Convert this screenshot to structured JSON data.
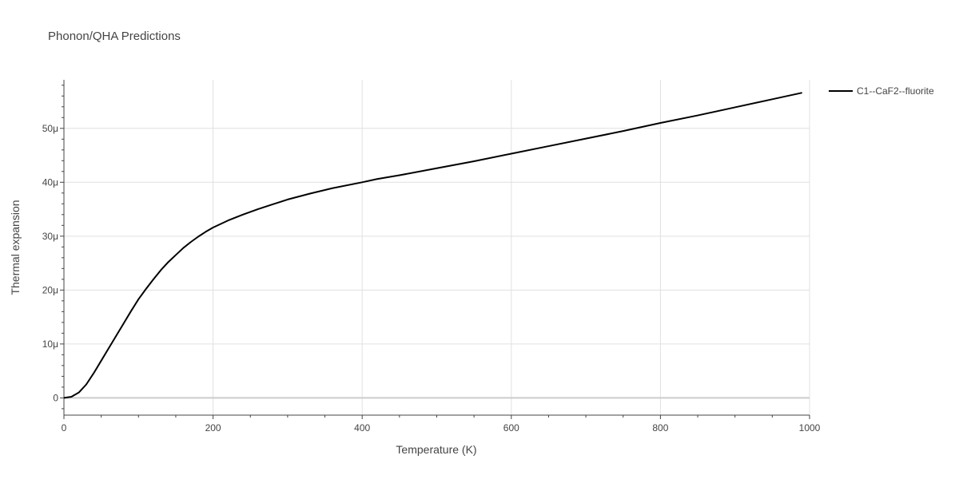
{
  "chart_data": {
    "type": "line",
    "title": "Phonon/QHA Predictions",
    "xlabel": "Temperature (K)",
    "ylabel": "Thermal expansion",
    "xlim": [
      0,
      1000
    ],
    "ylim": [
      -3.2e-06,
      5.9e-05
    ],
    "grid": true,
    "legend_position": "top-right",
    "x_ticks": [
      {
        "value": 0,
        "label": "0"
      },
      {
        "value": 200,
        "label": "200"
      },
      {
        "value": 400,
        "label": "400"
      },
      {
        "value": 600,
        "label": "600"
      },
      {
        "value": 800,
        "label": "800"
      },
      {
        "value": 1000,
        "label": "1000"
      }
    ],
    "y_ticks": [
      {
        "value": 0,
        "label": "0"
      },
      {
        "value": 1e-05,
        "label": "10μ"
      },
      {
        "value": 2e-05,
        "label": "20μ"
      },
      {
        "value": 3e-05,
        "label": "30μ"
      },
      {
        "value": 4e-05,
        "label": "40μ"
      },
      {
        "value": 5e-05,
        "label": "50μ"
      }
    ],
    "series": [
      {
        "name": "C1--CaF2--fluorite",
        "color": "#000000",
        "x": [
          0,
          10,
          20,
          30,
          40,
          50,
          60,
          70,
          80,
          90,
          100,
          110,
          120,
          130,
          140,
          150,
          160,
          170,
          180,
          190,
          200,
          220,
          240,
          260,
          280,
          300,
          330,
          360,
          400,
          420,
          450,
          500,
          550,
          600,
          650,
          700,
          750,
          800,
          850,
          900,
          950,
          990
        ],
        "y": [
          0,
          2e-07,
          1e-06,
          2.5e-06,
          4.6e-06,
          6.9e-06,
          9.2e-06,
          1.15e-05,
          1.38e-05,
          1.61e-05,
          1.83e-05,
          2.02e-05,
          2.2e-05,
          2.37e-05,
          2.52e-05,
          2.65e-05,
          2.78e-05,
          2.89e-05,
          2.99e-05,
          3.08e-05,
          3.16e-05,
          3.29e-05,
          3.4e-05,
          3.5e-05,
          3.59e-05,
          3.68e-05,
          3.79e-05,
          3.89e-05,
          4e-05,
          4.06e-05,
          4.13e-05,
          4.26e-05,
          4.39e-05,
          4.53e-05,
          4.67e-05,
          4.81e-05,
          4.95e-05,
          5.1e-05,
          5.24e-05,
          5.39e-05,
          5.54e-05,
          5.66e-05
        ]
      }
    ]
  }
}
